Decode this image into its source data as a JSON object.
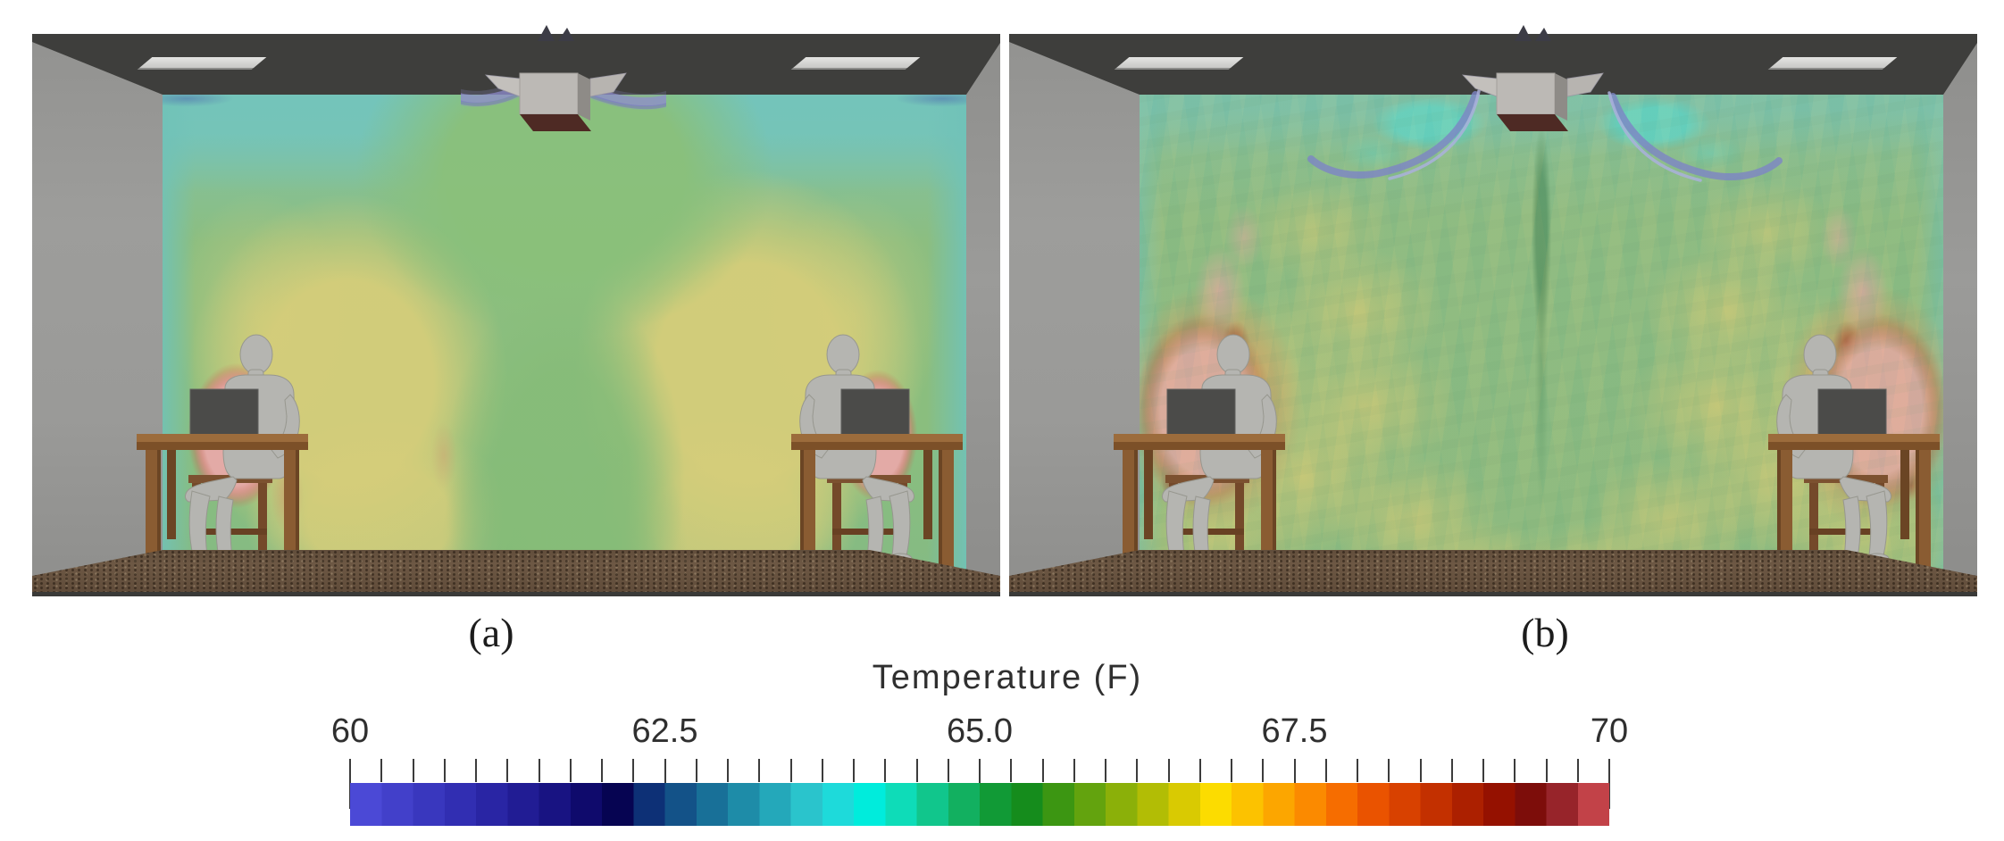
{
  "figure": {
    "captions": {
      "a": "(a)",
      "b": "(b)"
    }
  },
  "colorbar": {
    "title": "Temperature (F)",
    "min": 60,
    "max": 70,
    "minor_tick_step": 0.25,
    "major_ticks": [
      60,
      62.5,
      65.0,
      67.5,
      70
    ],
    "major_tick_labels": [
      "60",
      "62.5",
      "65.0",
      "67.5",
      "70"
    ],
    "band_colors": [
      "#4b49d6",
      "#4240ca",
      "#3937be",
      "#312eb2",
      "#2925a4",
      "#211c94",
      "#181382",
      "#0f0a6c",
      "#060452",
      "#0d3076",
      "#135288",
      "#187098",
      "#1e8ca8",
      "#24a8ba",
      "#2ac4cc",
      "#1edada",
      "#00ecdc",
      "#0edcb8",
      "#11c68c",
      "#12b060",
      "#119a36",
      "#158c1c",
      "#3c9612",
      "#63a30e",
      "#8bb009",
      "#b2bd05",
      "#d9ca02",
      "#fcdc00",
      "#fcc200",
      "#fca600",
      "#fb8a00",
      "#f66d00",
      "#ea5300",
      "#d84100",
      "#c33000",
      "#ac2000",
      "#951100",
      "#7d0d0a",
      "#97242a",
      "#c24248"
    ]
  },
  "chart_data": {
    "type": "heatmap",
    "title": "Temperature (F)",
    "colorbar_label": "Temperature (F)",
    "range_f": [
      60,
      70
    ],
    "major_ticks_f": [
      60,
      62.5,
      65.0,
      67.5,
      70
    ],
    "minor_tick_step_f": 0.25,
    "panels": [
      {
        "label": "(a)",
        "description": "CFD temperature slice of a ceiling-diffuser ventilated room with two seated occupants at laptop desks; smooth field",
        "approx_region_values_f": {
          "supply_jets": 60.5,
          "near_ceiling": 63.0,
          "core": 64.5,
          "side_zones": 66.0,
          "occupant_plumes": 69.5
        }
      },
      {
        "label": "(b)",
        "description": "Same room and occupants; mottled turbulent temperature field with larger occupant thermal plumes and cyan pockets beside the diffuser jets",
        "approx_region_values_f": {
          "supply_jets": 60.5,
          "near_ceiling": 63.5,
          "core": 64.5,
          "side_zones": 66.0,
          "occupant_plumes": 69.5
        }
      }
    ],
    "scene": {
      "occupants_per_panel": 2,
      "objects": [
        "ceiling supply diffuser",
        "two ceiling lights",
        "two wooden desks",
        "two laptops",
        "two wooden chairs",
        "carpeted floor"
      ]
    }
  },
  "palette": {
    "field_teal": "#74c4ba",
    "field_green": "#8abe7e",
    "field_yellow": "#d5cd7a",
    "plume_pink": "#e3aaa6",
    "plume_rim": "#cb695c",
    "jet_purple": "#8e8bce",
    "cyan_pocket": "#5fd4c8",
    "ceiling": "#3e3e3c",
    "wall": "#9a9a98",
    "floor": "#6d5844",
    "wood": "#8a5c32",
    "mannequin": "#b5b5b1",
    "laptop": "#4b4b49"
  }
}
